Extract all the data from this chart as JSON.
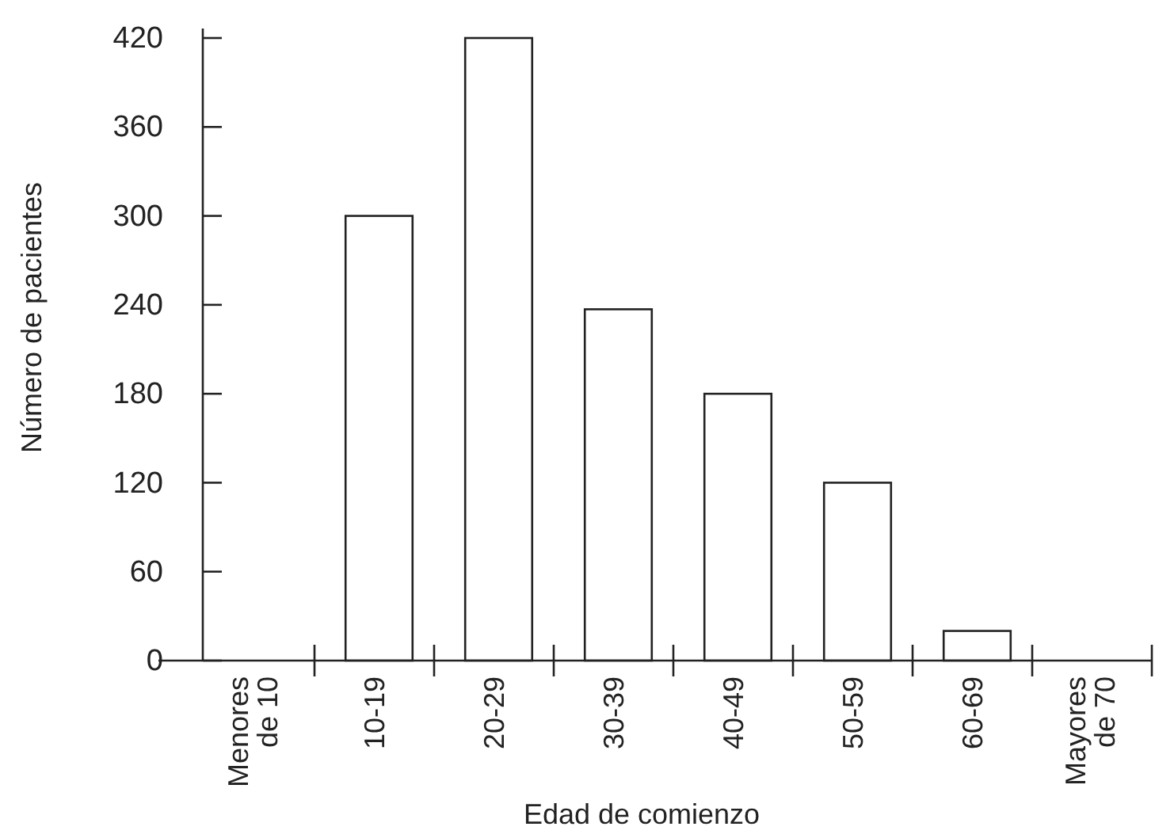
{
  "chart_data": {
    "type": "bar",
    "xlabel": "Edad de comienzo",
    "ylabel": "Número de pacientes",
    "categories": [
      "Menores de 10",
      "10-19",
      "20-29",
      "30-39",
      "40-49",
      "50-59",
      "60-69",
      "Mayores de 70"
    ],
    "values": [
      0,
      300,
      420,
      237,
      180,
      120,
      20,
      0
    ],
    "color": "#ffffff",
    "ylim": [
      0,
      420
    ],
    "yticks": [
      0,
      60,
      120,
      180,
      240,
      300,
      360,
      420
    ],
    "grid": false
  }
}
